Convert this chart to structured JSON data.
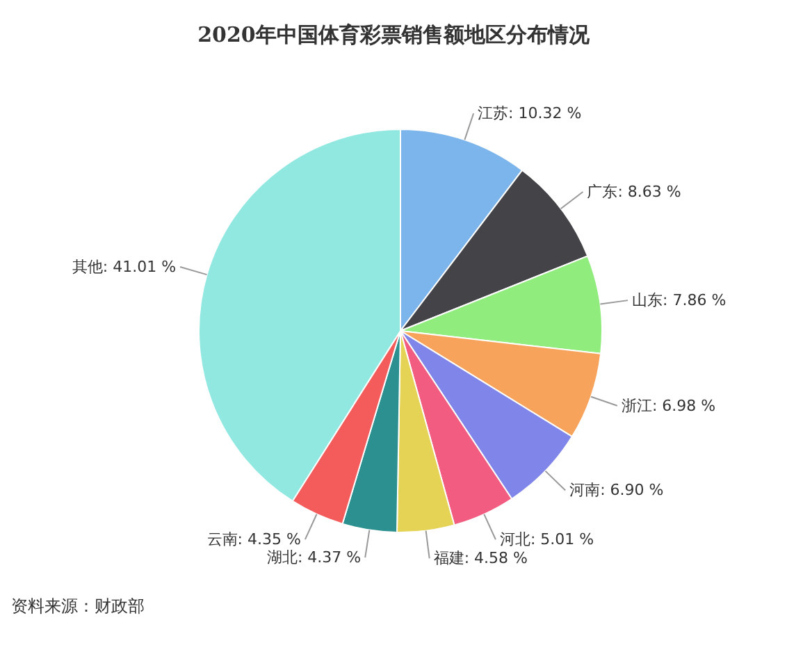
{
  "chart_data": {
    "type": "pie",
    "title": "2020年中国体育彩票销售额地区分布情况",
    "categories": [
      "江苏",
      "广东",
      "山东",
      "浙江",
      "河南",
      "河北",
      "福建",
      "湖北",
      "云南",
      "其他"
    ],
    "values": [
      10.32,
      8.63,
      7.86,
      6.98,
      6.9,
      5.01,
      4.58,
      4.37,
      4.35,
      41.01
    ],
    "value_labels": [
      "10.32 %",
      "8.63 %",
      "7.86 %",
      "6.98 %",
      "6.90 %",
      "5.01 %",
      "4.58 %",
      "4.37 %",
      "4.35 %",
      "41.01 %"
    ],
    "colors": [
      "#7cb5ec",
      "#434348",
      "#90ed7d",
      "#f7a35c",
      "#8085e9",
      "#f15c80",
      "#e4d354",
      "#2b908f",
      "#f45b5b",
      "#91e8e1"
    ],
    "legend": false,
    "annotations": [
      "资料来源：财政部"
    ]
  }
}
